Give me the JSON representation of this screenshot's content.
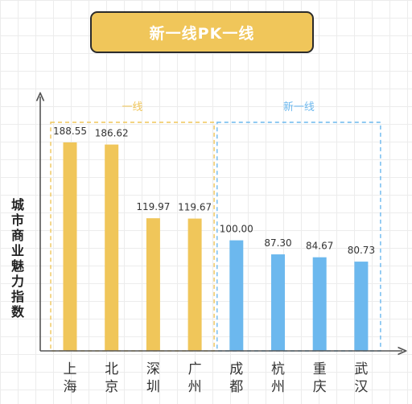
{
  "title": "新一线PK一线",
  "chart_data": {
    "type": "bar",
    "title": "新一线PK一线",
    "ylabel": "城市商业魅力指数",
    "xlabel": "",
    "categories": [
      "上海",
      "北京",
      "深圳",
      "广州",
      "成都",
      "杭州",
      "重庆",
      "武汉"
    ],
    "values": [
      188.55,
      186.62,
      119.97,
      119.67,
      100.0,
      87.3,
      84.67,
      80.73
    ],
    "value_labels": [
      "188.55",
      "186.62",
      "119.97",
      "119.67",
      "100.00",
      "87.30",
      "84.67",
      "80.73"
    ],
    "ylim": [
      0,
      230
    ],
    "grid": true,
    "groups": [
      {
        "label": "一线",
        "start": 0,
        "end": 3,
        "color": "#f0c65a"
      },
      {
        "label": "新一线",
        "start": 4,
        "end": 7,
        "color": "#6cb8ee"
      }
    ]
  }
}
